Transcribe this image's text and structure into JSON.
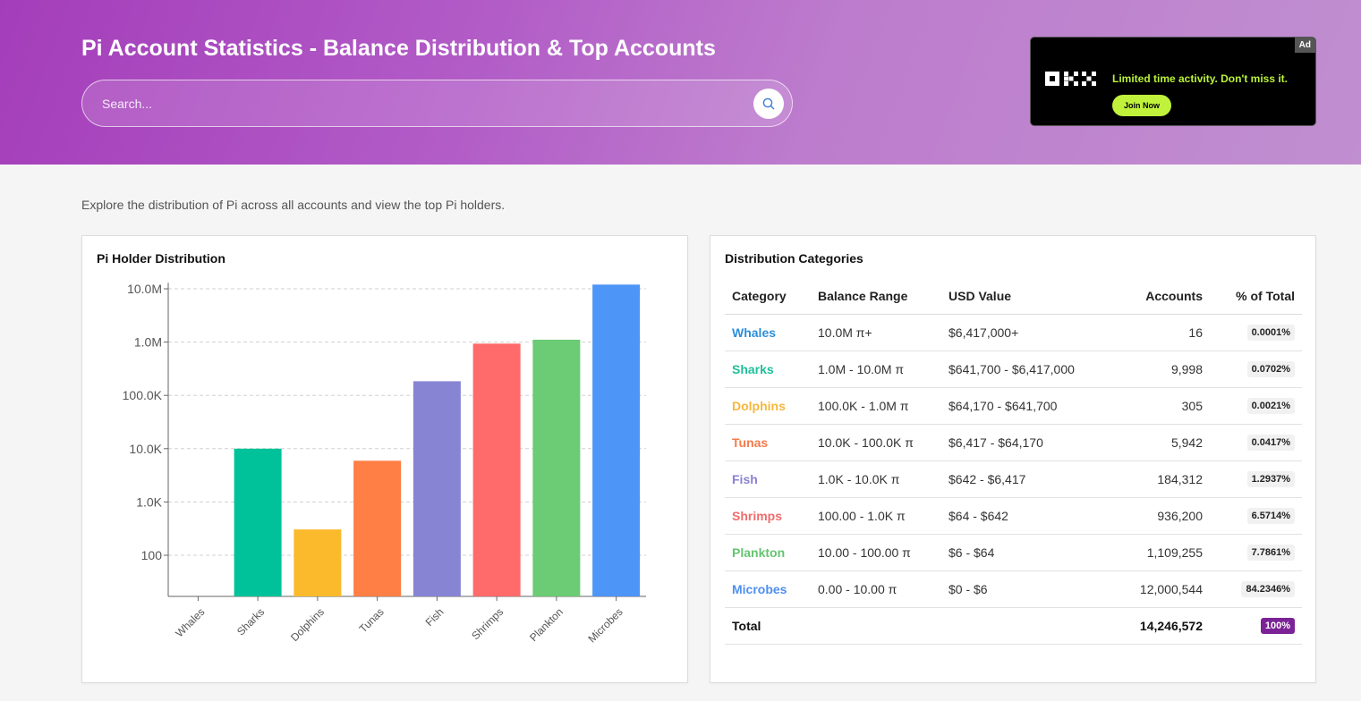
{
  "header": {
    "title": "Pi Account Statistics - Balance Distribution & Top Accounts",
    "search_placeholder": "Search..."
  },
  "ad": {
    "badge": "Ad",
    "brand": "OKX",
    "text": "Limited time activity. Don't miss it.",
    "button": "Join Now"
  },
  "intro": "Explore the distribution of Pi across all accounts and view the top Pi holders.",
  "chart_card": {
    "title": "Pi Holder Distribution"
  },
  "chart_data": {
    "type": "bar",
    "title": "Pi Holder Distribution",
    "xlabel": "",
    "ylabel": "",
    "y_scale": "log",
    "grid": true,
    "categories": [
      "Whales",
      "Sharks",
      "Dolphins",
      "Tunas",
      "Fish",
      "Shrimps",
      "Plankton",
      "Microbes"
    ],
    "values": [
      16,
      9998,
      305,
      5942,
      184312,
      936200,
      1109255,
      12000544
    ],
    "colors": [
      "#2d8fd9",
      "#00c29a",
      "#fbba2c",
      "#ff7f45",
      "#8884d4",
      "#ff6b6b",
      "#6ccb75",
      "#4d95f7"
    ],
    "y_ticks": [
      100,
      1000,
      10000,
      100000,
      1000000,
      10000000
    ],
    "y_tick_labels": [
      "100",
      "1.0K",
      "10.0K",
      "100.0K",
      "1.0M",
      "10.0M"
    ]
  },
  "table_card": {
    "title": "Distribution Categories",
    "columns": [
      "Category",
      "Balance Range",
      "USD Value",
      "Accounts",
      "% of Total"
    ],
    "rows": [
      {
        "category": "Whales",
        "color": "#2d8fd9",
        "range": "10.0M π+",
        "usd": "$6,417,000+",
        "accounts": "16",
        "pct": "0.0001%"
      },
      {
        "category": "Sharks",
        "color": "#1fbf9a",
        "range": "1.0M - 10.0M π",
        "usd": "$641,700 - $6,417,000",
        "accounts": "9,998",
        "pct": "0.0702%"
      },
      {
        "category": "Dolphins",
        "color": "#f6b73c",
        "range": "100.0K - 1.0M π",
        "usd": "$64,170 - $641,700",
        "accounts": "305",
        "pct": "0.0021%"
      },
      {
        "category": "Tunas",
        "color": "#f47b4a",
        "range": "10.0K - 100.0K π",
        "usd": "$6,417 - $64,170",
        "accounts": "5,942",
        "pct": "0.0417%"
      },
      {
        "category": "Fish",
        "color": "#8a82cf",
        "range": "1.0K - 10.0K π",
        "usd": "$642 - $6,417",
        "accounts": "184,312",
        "pct": "1.2937%"
      },
      {
        "category": "Shrimps",
        "color": "#f06c6c",
        "range": "100.00 - 1.0K π",
        "usd": "$64 - $642",
        "accounts": "936,200",
        "pct": "6.5714%"
      },
      {
        "category": "Plankton",
        "color": "#63c46f",
        "range": "10.00 - 100.00 π",
        "usd": "$6 - $64",
        "accounts": "1,109,255",
        "pct": "7.7861%"
      },
      {
        "category": "Microbes",
        "color": "#4f8ff0",
        "range": "0.00 - 10.00 π",
        "usd": "$0 - $6",
        "accounts": "12,000,544",
        "pct": "84.2346%"
      }
    ],
    "total": {
      "label": "Total",
      "accounts": "14,246,572",
      "pct": "100%"
    }
  }
}
